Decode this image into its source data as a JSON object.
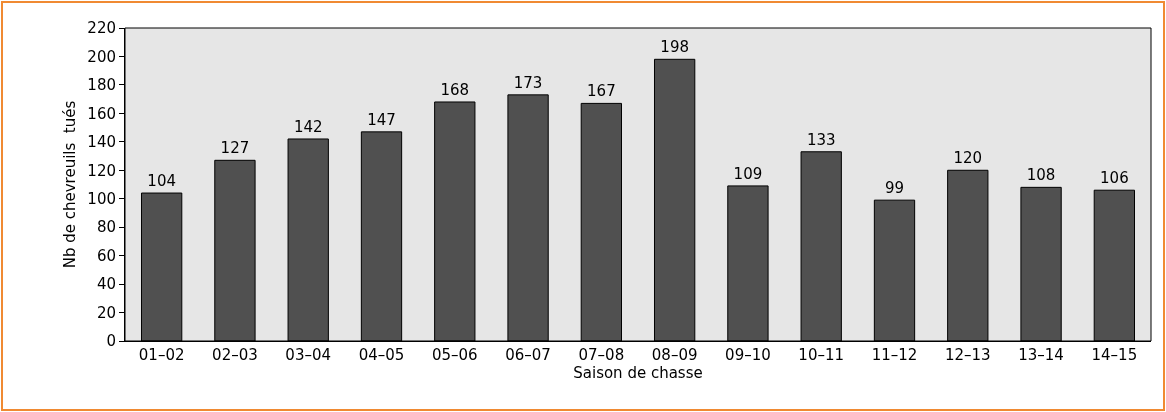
{
  "chart_data": {
    "type": "bar",
    "xlabel": "Saison de chasse",
    "ylabel": "Nb de chevreuils  tués",
    "categories": [
      "01–02",
      "02–03",
      "03–04",
      "04–05",
      "05–06",
      "06–07",
      "07–08",
      "08–09",
      "09–10",
      "10–11",
      "11–12",
      "12–13",
      "13–14",
      "14–15"
    ],
    "values": [
      104,
      127,
      142,
      147,
      168,
      173,
      167,
      198,
      109,
      133,
      99,
      120,
      108,
      106
    ],
    "color": "#505050",
    "ylim": [
      0,
      220
    ],
    "yticks": [
      0,
      20,
      40,
      60,
      80,
      100,
      120,
      140,
      160,
      180,
      200,
      220
    ],
    "data_labels": true
  }
}
